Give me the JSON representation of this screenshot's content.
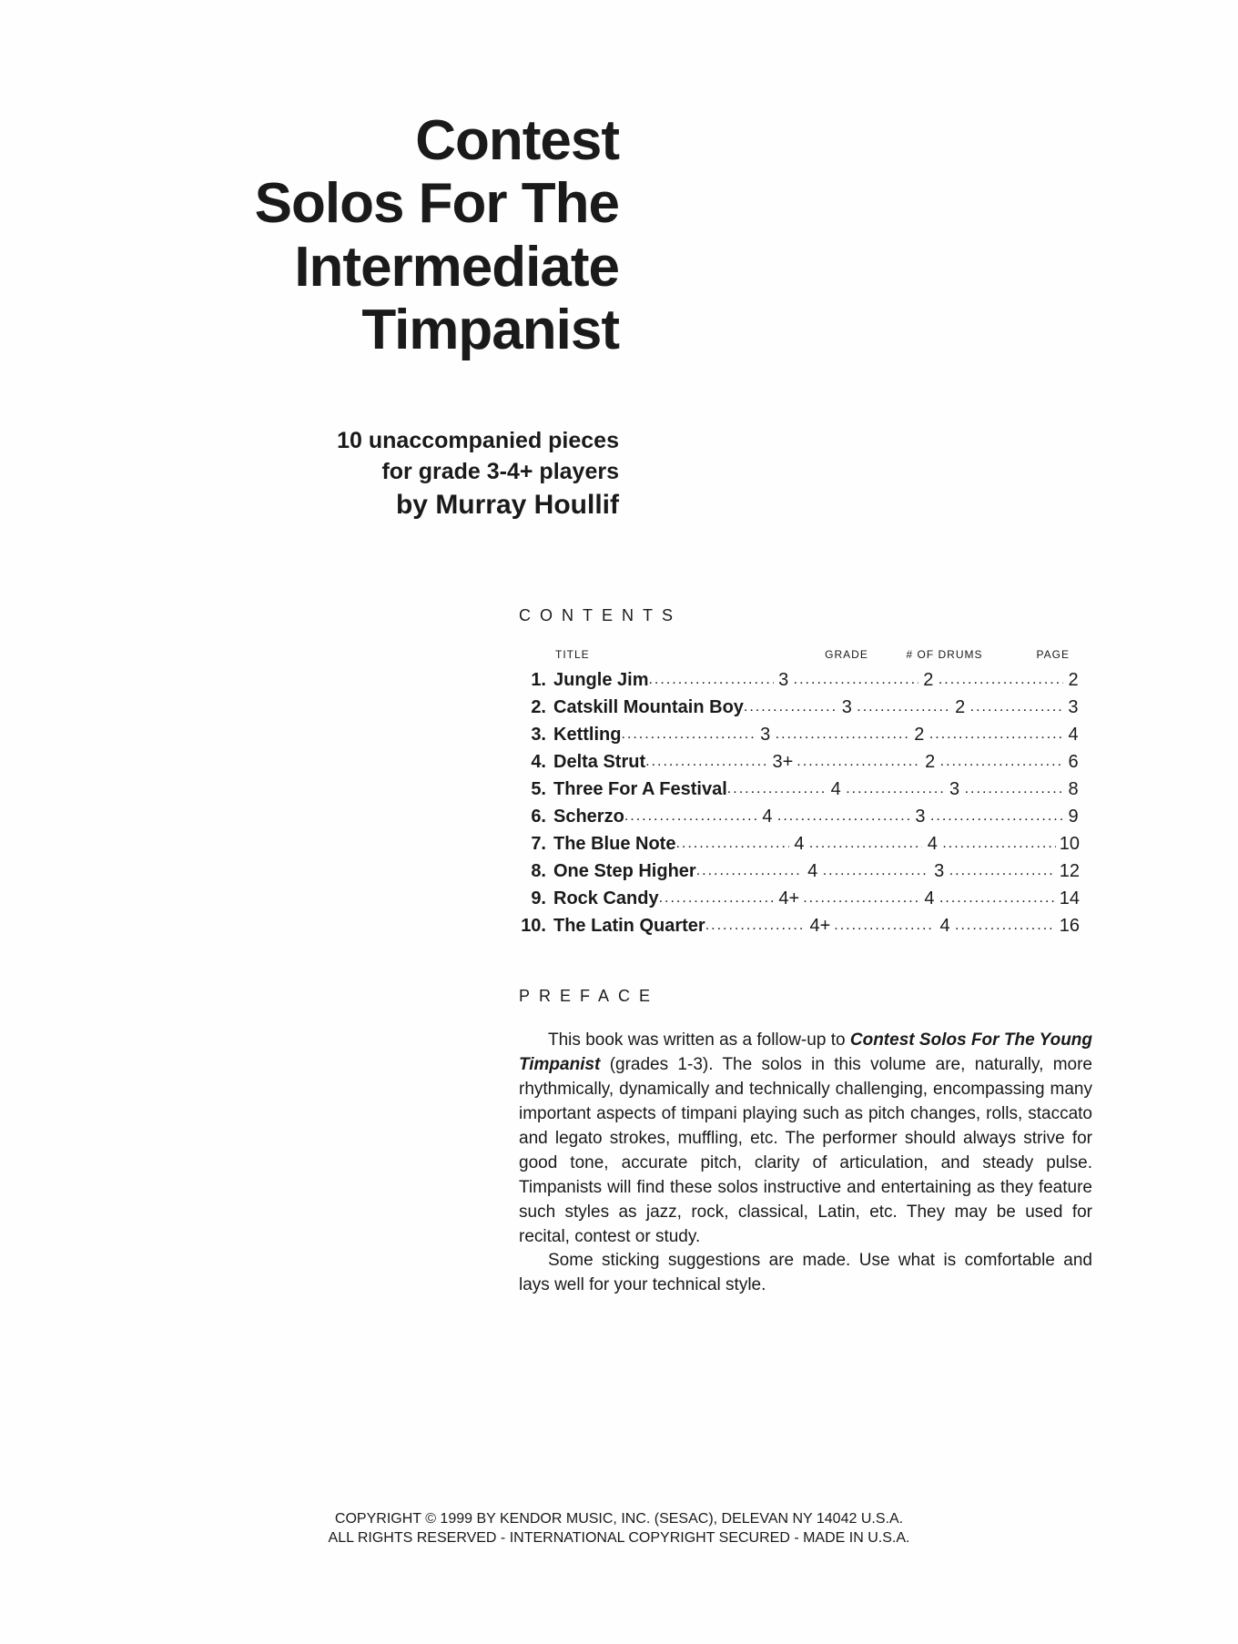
{
  "title": {
    "line1": "Contest",
    "line2": "Solos For The",
    "line3": "Intermediate",
    "line4": "Timpanist"
  },
  "subtitle": {
    "line1": "10 unaccompanied pieces",
    "line2": "for grade 3-4+ players",
    "author": "by Murray Houllif"
  },
  "contents": {
    "heading": "CONTENTS",
    "headers": {
      "title": "TITLE",
      "grade": "GRADE",
      "drums": "# OF DRUMS",
      "page": "PAGE"
    },
    "rows": [
      {
        "num": "1.",
        "title": "Jungle Jim",
        "grade": "3",
        "drums": "2",
        "page": "2"
      },
      {
        "num": "2.",
        "title": "Catskill Mountain Boy",
        "grade": "3",
        "drums": "2",
        "page": "3"
      },
      {
        "num": "3.",
        "title": "Kettling",
        "grade": "3",
        "drums": "2",
        "page": "4"
      },
      {
        "num": "4.",
        "title": "Delta Strut",
        "grade": "3+",
        "drums": "2",
        "page": "6"
      },
      {
        "num": "5.",
        "title": "Three For A Festival",
        "grade": "4",
        "drums": "3",
        "page": "8"
      },
      {
        "num": "6.",
        "title": "Scherzo",
        "grade": "4",
        "drums": "3",
        "page": "9"
      },
      {
        "num": "7.",
        "title": "The Blue Note",
        "grade": "4",
        "drums": "4",
        "page": "10"
      },
      {
        "num": "8.",
        "title": "One Step Higher",
        "grade": "4",
        "drums": "3",
        "page": "12"
      },
      {
        "num": "9.",
        "title": "Rock Candy",
        "grade": "4+",
        "drums": "4",
        "page": "14"
      },
      {
        "num": "10.",
        "title": "The Latin Quarter",
        "grade": "4+",
        "drums": "4",
        "page": "16"
      }
    ]
  },
  "preface": {
    "heading": "PREFACE",
    "para1_a": "This book was written as a follow-up to ",
    "para1_b": "Contest Solos For The Young Timpanist",
    "para1_c": " (grades 1-3).  The solos in this volume are, naturally, more rhythmically, dynamically and technically challenging, encompassing many important aspects of timpani playing such as pitch changes, rolls, staccato and legato strokes, muffling, etc.  The performer should always strive for good tone, accurate pitch, clarity of articulation, and steady pulse.  Timpanists will find these solos instructive and entertaining as they feature such styles as jazz, rock, classical, Latin, etc.  They may be used for recital, contest or study.",
    "para2": "Some sticking suggestions are made.  Use what is comfortable and lays well for your technical style."
  },
  "copyright": {
    "line1": "COPYRIGHT © 1999 BY KENDOR MUSIC, INC. (SESAC), DELEVAN NY 14042 U.S.A.",
    "line2": "ALL RIGHTS RESERVED - INTERNATIONAL COPYRIGHT SECURED - MADE IN U.S.A."
  }
}
